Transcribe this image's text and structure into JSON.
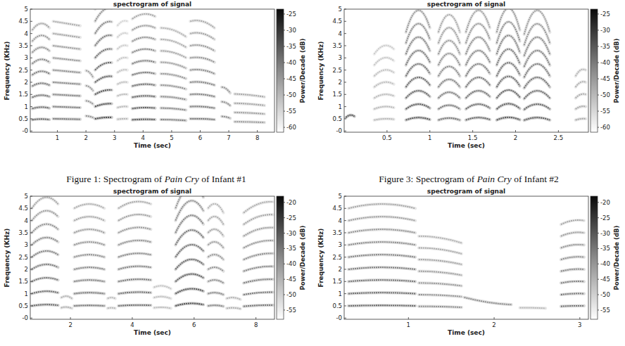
{
  "chart_data": [
    {
      "type": "spectrogram",
      "title": "spectrogram of signal",
      "x_label": "Time (sec)",
      "y_label": "Frequency (KHz)",
      "xlim": [
        0.05,
        8.6
      ],
      "xticks": [
        1,
        2,
        3,
        4,
        5,
        6,
        7,
        8
      ],
      "ylim": [
        -0.05,
        5
      ],
      "yticks": [
        {
          "value": 0,
          "label": "-0"
        },
        0.5,
        1,
        1.5,
        2,
        2.5,
        3,
        3.5,
        4,
        4.5,
        5
      ],
      "colorbar": {
        "label": "Power/Decade (dB)",
        "range": [
          -61.5,
          -23.5
        ],
        "ticks": [
          -25,
          -30,
          -35,
          -40,
          -45,
          -50,
          -55,
          -60
        ]
      },
      "segments": [
        {
          "start": 0.12,
          "end": 0.72,
          "f0": [
            0.46,
            0.49,
            0.47
          ],
          "harmonics": 9,
          "level": -38
        },
        {
          "start": 0.85,
          "end": 1.8,
          "f0": [
            0.5,
            0.49,
            0.48
          ],
          "harmonics": 9,
          "level": -40
        },
        {
          "start": 2.0,
          "end": 2.25,
          "f0": [
            0.62,
            0.6,
            0.55
          ],
          "harmonics": 4,
          "level": -45
        },
        {
          "start": 2.32,
          "end": 2.9,
          "f0": [
            0.5,
            0.55,
            0.56
          ],
          "harmonics": 10,
          "level": -34
        },
        {
          "start": 3.1,
          "end": 3.45,
          "f0": [
            0.48,
            0.5,
            0.5
          ],
          "harmonics": 9,
          "level": -50
        },
        {
          "start": 3.62,
          "end": 4.42,
          "f0": [
            0.46,
            0.48,
            0.47
          ],
          "harmonics": 10,
          "level": -36
        },
        {
          "start": 4.62,
          "end": 5.5,
          "f0": [
            0.47,
            0.46,
            0.43
          ],
          "harmonics": 9,
          "level": -42
        },
        {
          "start": 5.65,
          "end": 6.5,
          "f0": [
            0.5,
            0.5,
            0.47
          ],
          "harmonics": 9,
          "level": -40
        },
        {
          "start": 6.75,
          "end": 7.05,
          "f0": [
            0.6,
            0.58,
            0.52
          ],
          "harmonics": 3,
          "level": -44
        },
        {
          "start": 7.2,
          "end": 8.25,
          "f0": [
            0.38,
            0.37,
            0.35
          ],
          "harmonics": 4,
          "level": -46
        }
      ]
    },
    {
      "type": "spectrogram",
      "title": "spectrogram of signal",
      "x_label": "Time (sec)",
      "y_label": "Frequency (KHz)",
      "xlim": [
        0,
        2.85
      ],
      "xticks": [
        0.5,
        1,
        1.5,
        2,
        2.5
      ],
      "ylim": [
        -0.05,
        5
      ],
      "yticks": [
        {
          "value": 0,
          "label": "-0"
        },
        0.5,
        1,
        1.5,
        2,
        2.5,
        3,
        3.5,
        4,
        4.5,
        5
      ],
      "colorbar": {
        "label": "Power/Decade (dB)",
        "range": [
          -61.5,
          -23.5
        ],
        "ticks": [
          -25,
          -30,
          -35,
          -40,
          -45,
          -50,
          -55,
          -60
        ]
      },
      "segments": [
        {
          "start": 0.02,
          "end": 0.12,
          "f0": [
            0.55,
            0.65,
            0.6
          ],
          "harmonics": 1,
          "level": -35
        },
        {
          "start": 0.35,
          "end": 0.58,
          "f0": [
            0.45,
            0.5,
            0.48
          ],
          "harmonics": 7,
          "level": -50
        },
        {
          "start": 0.72,
          "end": 1.0,
          "f0": [
            0.45,
            0.55,
            0.47
          ],
          "harmonics": 9,
          "level": -36
        },
        {
          "start": 1.1,
          "end": 1.35,
          "f0": [
            0.45,
            0.53,
            0.45
          ],
          "harmonics": 9,
          "level": -40
        },
        {
          "start": 1.42,
          "end": 1.7,
          "f0": [
            0.45,
            0.55,
            0.47
          ],
          "harmonics": 9,
          "level": -38
        },
        {
          "start": 1.78,
          "end": 2.05,
          "f0": [
            0.45,
            0.56,
            0.46
          ],
          "harmonics": 9,
          "level": -36
        },
        {
          "start": 2.1,
          "end": 2.4,
          "f0": [
            0.44,
            0.55,
            0.45
          ],
          "harmonics": 9,
          "level": -37
        },
        {
          "start": 2.7,
          "end": 2.82,
          "f0": [
            0.45,
            0.5,
            0.5
          ],
          "harmonics": 5,
          "level": -48
        }
      ]
    },
    {
      "type": "spectrogram",
      "title": "spectrogram of signal",
      "x_label": "Time (sec)",
      "y_label": "Frequency (KHz)",
      "xlim": [
        0.7,
        8.6
      ],
      "xticks": [
        2,
        4,
        6,
        8
      ],
      "ylim": [
        -0.05,
        5
      ],
      "yticks": [
        {
          "value": 0,
          "label": "-0"
        },
        0.5,
        1,
        1.5,
        2,
        2.5,
        3,
        3.5,
        4,
        4.5,
        5
      ],
      "colorbar": {
        "label": "Power/Decade (dB)",
        "range": [
          -58,
          -18
        ],
        "ticks": [
          -20,
          -25,
          -30,
          -35,
          -40,
          -45,
          -50,
          -55
        ]
      },
      "segments": [
        {
          "start": 0.75,
          "end": 1.6,
          "f0": [
            0.5,
            0.55,
            0.52
          ],
          "harmonics": 9,
          "level": -34
        },
        {
          "start": 1.7,
          "end": 2.05,
          "f0": [
            0.42,
            0.45,
            0.4
          ],
          "harmonics": 2,
          "level": -45
        },
        {
          "start": 2.12,
          "end": 3.1,
          "f0": [
            0.5,
            0.52,
            0.5
          ],
          "harmonics": 9,
          "level": -36
        },
        {
          "start": 3.2,
          "end": 3.45,
          "f0": [
            0.4,
            0.42,
            0.4
          ],
          "harmonics": 2,
          "level": -46
        },
        {
          "start": 3.55,
          "end": 4.6,
          "f0": [
            0.5,
            0.53,
            0.52
          ],
          "harmonics": 9,
          "level": -35
        },
        {
          "start": 4.7,
          "end": 5.25,
          "f0": [
            0.42,
            0.44,
            0.4
          ],
          "harmonics": 3,
          "level": -47
        },
        {
          "start": 5.4,
          "end": 6.3,
          "f0": [
            0.5,
            0.6,
            0.55
          ],
          "harmonics": 9,
          "level": -30
        },
        {
          "start": 6.45,
          "end": 6.95,
          "f0": [
            0.5,
            0.52,
            0.48
          ],
          "harmonics": 9,
          "level": -38
        },
        {
          "start": 7.05,
          "end": 7.5,
          "f0": [
            0.4,
            0.42,
            0.38
          ],
          "harmonics": 2,
          "level": -45
        },
        {
          "start": 7.6,
          "end": 8.55,
          "f0": [
            0.48,
            0.52,
            0.53
          ],
          "harmonics": 9,
          "level": -36
        }
      ]
    },
    {
      "type": "spectrogram",
      "title": "spectrogram of signal",
      "x_label": "Time (sec)",
      "y_label": "Frequency (KHz)",
      "xlim": [
        0.25,
        3.1
      ],
      "xticks": [
        1,
        2,
        3
      ],
      "ylim": [
        -0.05,
        5
      ],
      "yticks": [
        {
          "value": 0,
          "label": "-0"
        },
        0.5,
        1,
        1.5,
        2,
        2.5,
        3,
        3.5,
        4,
        4.5,
        5
      ],
      "colorbar": {
        "label": "Power/Decade (dB)",
        "range": [
          -58,
          -18
        ],
        "ticks": [
          -20,
          -25,
          -30,
          -35,
          -40,
          -45,
          -50,
          -55
        ]
      },
      "segments": [
        {
          "start": 0.3,
          "end": 1.08,
          "f0": [
            0.5,
            0.52,
            0.5
          ],
          "harmonics": 9,
          "level": -34
        },
        {
          "start": 1.12,
          "end": 1.62,
          "f0": [
            0.48,
            0.47,
            0.44
          ],
          "harmonics": 7,
          "level": -40
        },
        {
          "start": 1.65,
          "end": 2.2,
          "f0": [
            0.85,
            0.65,
            0.55
          ],
          "harmonics": 1,
          "level": -40
        },
        {
          "start": 2.3,
          "end": 2.6,
          "f0": [
            0.42,
            0.42,
            0.4
          ],
          "harmonics": 1,
          "level": -46
        },
        {
          "start": 2.78,
          "end": 3.05,
          "f0": [
            0.48,
            0.5,
            0.5
          ],
          "harmonics": 8,
          "level": -36
        }
      ]
    }
  ],
  "captions": [
    {
      "prefix": "Figure 1: Spectrogram of ",
      "emphasis": "Pain Cry",
      "suffix": " of Infant #1"
    },
    {
      "prefix": "Figure 3: Spectrogram of ",
      "emphasis": "Pain Cry",
      "suffix": " of Infant #2"
    }
  ]
}
